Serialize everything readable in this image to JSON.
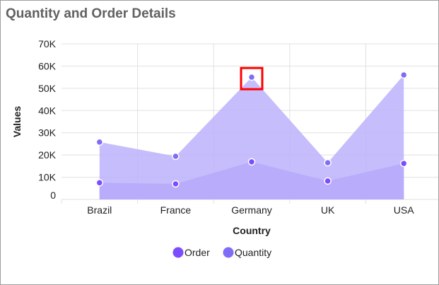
{
  "chart_data": {
    "type": "area",
    "title": "Quantity and Order Details",
    "xlabel": "Country",
    "ylabel": "Values",
    "categories": [
      "Brazil",
      "France",
      "Germany",
      "UK",
      "USA"
    ],
    "ylim": [
      0,
      70000
    ],
    "yticks": [
      0,
      10000,
      20000,
      30000,
      40000,
      50000,
      60000,
      70000
    ],
    "ytick_labels": [
      "0",
      "10K",
      "20K",
      "30K",
      "40K",
      "50K",
      "60K",
      "70K"
    ],
    "grid": true,
    "legend": "bottom",
    "series": [
      {
        "name": "Order",
        "values": [
          7500,
          7000,
          16900,
          8300,
          16200
        ],
        "fill": "#a08af8",
        "marker": "#7c4dff"
      },
      {
        "name": "Quantity",
        "values": [
          25800,
          19400,
          55000,
          16500,
          56000
        ],
        "fill": "#bcb2fb",
        "marker": "#7f6ef5"
      }
    ],
    "highlight": {
      "category": "Germany",
      "series": "Quantity",
      "color": "#ff0000"
    }
  }
}
